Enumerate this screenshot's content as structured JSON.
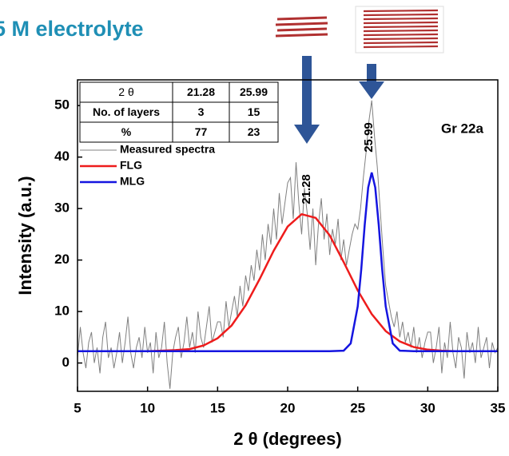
{
  "chart_data": {
    "type": "line",
    "title": "5 M electrolyte",
    "xlabel": "2 θ (degrees)",
    "ylabel": "Intensity (a.u.)",
    "xlim": [
      5,
      35
    ],
    "ylim": [
      -5.5,
      55
    ],
    "xticks": [
      5,
      10,
      15,
      20,
      25,
      30,
      35
    ],
    "yticks": [
      0,
      10,
      20,
      30,
      40,
      50
    ],
    "legend": "upper left",
    "annotations": [
      "Gr 22a",
      "21.28",
      "25.99"
    ],
    "table": {
      "rows": [
        [
          "2 θ",
          "21.28",
          "25.99"
        ],
        [
          "No. of layers",
          "3",
          "15"
        ],
        [
          "%",
          "77",
          "23"
        ]
      ]
    },
    "series": [
      {
        "name": "Measured spectra",
        "color": "#808080",
        "x": [
          5,
          5.2,
          5.4,
          5.6,
          5.8,
          6,
          6.2,
          6.4,
          6.6,
          6.8,
          7,
          7.2,
          7.4,
          7.6,
          7.8,
          8,
          8.2,
          8.4,
          8.6,
          8.8,
          9,
          9.2,
          9.4,
          9.6,
          9.8,
          10,
          10.2,
          10.4,
          10.6,
          10.8,
          11,
          11.2,
          11.4,
          11.6,
          11.8,
          12,
          12.2,
          12.4,
          12.6,
          12.8,
          13,
          13.2,
          13.4,
          13.6,
          13.8,
          14,
          14.2,
          14.4,
          14.6,
          14.8,
          15,
          15.2,
          15.4,
          15.6,
          15.8,
          16,
          16.2,
          16.4,
          16.6,
          16.8,
          17,
          17.2,
          17.4,
          17.6,
          17.8,
          18,
          18.2,
          18.4,
          18.6,
          18.8,
          19,
          19.2,
          19.4,
          19.6,
          19.8,
          20,
          20.2,
          20.4,
          20.6,
          20.8,
          21,
          21.2,
          21.4,
          21.6,
          21.8,
          22,
          22.2,
          22.4,
          22.6,
          22.8,
          23,
          23.2,
          23.4,
          23.6,
          23.8,
          24,
          24.2,
          24.4,
          24.6,
          24.8,
          25,
          25.2,
          25.4,
          25.6,
          25.8,
          26,
          26.2,
          26.4,
          26.6,
          26.8,
          27,
          27.2,
          27.4,
          27.6,
          27.8,
          28,
          28.2,
          28.4,
          28.6,
          28.8,
          29,
          29.2,
          29.4,
          29.6,
          29.8,
          30,
          30.2,
          30.4,
          30.6,
          30.8,
          31,
          31.2,
          31.4,
          31.6,
          31.8,
          32,
          32.2,
          32.4,
          32.6,
          32.8,
          33,
          33.2,
          33.4,
          33.6,
          33.8,
          34,
          34.2,
          34.4,
          34.6,
          34.8,
          35
        ],
        "values": [
          1,
          7,
          2,
          -1,
          4,
          6,
          0,
          3,
          -2,
          5,
          8,
          1,
          3,
          -1,
          2,
          6,
          0,
          4,
          9,
          2,
          -1,
          3,
          5,
          1,
          7,
          2,
          4,
          -2,
          6,
          1,
          3,
          8,
          0,
          -5,
          2,
          5,
          7,
          1,
          4,
          9,
          3,
          6,
          2,
          10,
          5,
          3,
          7,
          11,
          4,
          6,
          8,
          8,
          5,
          12,
          7,
          10,
          13,
          9,
          15,
          11,
          17,
          14,
          19,
          16,
          22,
          18,
          25,
          20,
          27,
          23,
          30,
          24,
          33,
          27,
          31,
          35,
          36,
          28,
          39,
          31,
          25,
          34,
          29,
          22,
          30,
          19,
          27,
          32,
          24,
          29,
          21,
          26,
          23,
          28,
          20,
          24,
          19,
          22,
          25,
          27,
          26,
          30,
          36,
          41,
          47,
          51,
          44,
          38,
          30,
          22,
          15,
          12,
          9,
          7,
          10,
          5,
          8,
          4,
          6,
          3,
          7,
          2,
          5,
          1,
          4,
          6,
          6,
          0,
          3,
          7,
          -2,
          4,
          1,
          8,
          2,
          -1,
          5,
          3,
          -3,
          6,
          2,
          4,
          0,
          7,
          1,
          3,
          5,
          -1,
          4,
          2,
          3
        ]
      },
      {
        "name": "FLG",
        "color": "#ee1c1c",
        "x": [
          5,
          6,
          7,
          8,
          9,
          10,
          11,
          12,
          13,
          14,
          15,
          16,
          17,
          18,
          19,
          20,
          21,
          22,
          23,
          24,
          25,
          26,
          27,
          28,
          29,
          30,
          31,
          32,
          33,
          34,
          35
        ],
        "values": [
          2.3,
          2.3,
          2.3,
          2.3,
          2.3,
          2.3,
          2.4,
          2.5,
          2.7,
          3.4,
          4.8,
          7.3,
          11.2,
          16.3,
          21.8,
          26.5,
          28.9,
          28.2,
          24.8,
          19.6,
          14.1,
          9.5,
          6.2,
          4.2,
          3.1,
          2.6,
          2.4,
          2.3,
          2.3,
          2.3,
          2.3
        ]
      },
      {
        "name": "MLG",
        "color": "#1515e0",
        "x": [
          5,
          23,
          24,
          24.5,
          25,
          25.25,
          25.5,
          25.75,
          26,
          26.25,
          26.5,
          26.75,
          27,
          27.5,
          28,
          29,
          35
        ],
        "values": [
          2.3,
          2.3,
          2.4,
          3.8,
          11,
          18.2,
          26.8,
          34.1,
          37,
          34.1,
          26.8,
          18.2,
          11,
          3.8,
          2.4,
          2.3,
          2.3
        ]
      }
    ]
  }
}
